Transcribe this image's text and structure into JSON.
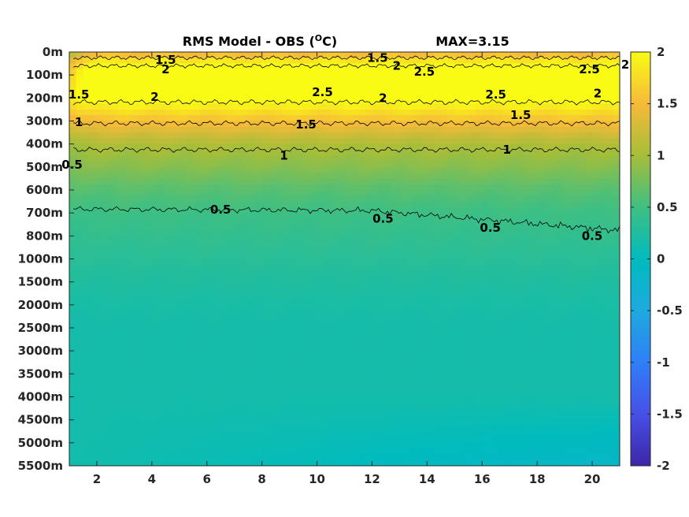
{
  "chart_data": {
    "type": "heatmap",
    "title": "RMS Model - OBS (",
    "title_unit": "C)",
    "title_superscript": "O",
    "max_label": "MAX=3.15",
    "x_ticks": [
      2,
      4,
      6,
      8,
      10,
      12,
      14,
      16,
      18,
      20
    ],
    "xlim": [
      1,
      21
    ],
    "y_ticks": [
      "0m",
      "100m",
      "200m",
      "300m",
      "400m",
      "500m",
      "600m",
      "700m",
      "800m",
      "1000m",
      "1500m",
      "2000m",
      "2500m",
      "3000m",
      "3500m",
      "4000m",
      "4500m",
      "5000m",
      "5500m"
    ],
    "colorbar": {
      "range": [
        -2,
        2
      ],
      "ticks": [
        "2",
        "1.5",
        "1",
        "0.5",
        "0",
        "-0.5",
        "-1",
        "-1.5",
        "-2"
      ],
      "colormap": "parula"
    },
    "contour_levels": [
      0.5,
      1,
      1.5,
      2,
      2.5
    ],
    "depth_profile": {
      "depth_index": [
        0,
        0.5,
        1,
        2,
        3,
        4,
        5,
        6,
        7,
        8,
        9,
        10,
        11,
        12,
        18
      ],
      "value": [
        1.4,
        2.0,
        2.15,
        2.1,
        1.55,
        1.05,
        0.85,
        0.62,
        0.48,
        0.4,
        0.32,
        0.25,
        0.2,
        0.17,
        0.15
      ]
    },
    "contour_labels": [
      {
        "text": "1.5",
        "x": 4.5,
        "y": 0.35
      },
      {
        "text": "2",
        "x": 4.5,
        "y": 0.75
      },
      {
        "text": "2",
        "x": 4.1,
        "y": 1.95
      },
      {
        "text": "1.5",
        "x": 12.2,
        "y": 0.25
      },
      {
        "text": "2",
        "x": 12.9,
        "y": 0.6
      },
      {
        "text": "2.5",
        "x": 13.9,
        "y": 0.85
      },
      {
        "text": "2.5",
        "x": 10.2,
        "y": 1.75
      },
      {
        "text": "2",
        "x": 12.4,
        "y": 2.0
      },
      {
        "text": "2.5",
        "x": 16.5,
        "y": 1.85
      },
      {
        "text": "2.5",
        "x": 19.9,
        "y": 0.75
      },
      {
        "text": "2",
        "x": 21.2,
        "y": 0.55
      },
      {
        "text": "2",
        "x": 20.2,
        "y": 1.8
      },
      {
        "text": "1.5",
        "x": 9.6,
        "y": 3.15
      },
      {
        "text": "1.5",
        "x": 17.4,
        "y": 2.75
      },
      {
        "text": "1.5",
        "x": 1.35,
        "y": 1.85
      },
      {
        "text": "1",
        "x": 1.35,
        "y": 3.05
      },
      {
        "text": "1",
        "x": 8.8,
        "y": 4.5
      },
      {
        "text": "1",
        "x": 16.9,
        "y": 4.25
      },
      {
        "text": "0.5",
        "x": 1.1,
        "y": 4.9
      },
      {
        "text": "0.5",
        "x": 6.5,
        "y": 6.85
      },
      {
        "text": "0.5",
        "x": 12.4,
        "y": 7.25
      },
      {
        "text": "0.5",
        "x": 16.3,
        "y": 7.65
      },
      {
        "text": "0.5",
        "x": 20.0,
        "y": 8.0
      }
    ]
  }
}
